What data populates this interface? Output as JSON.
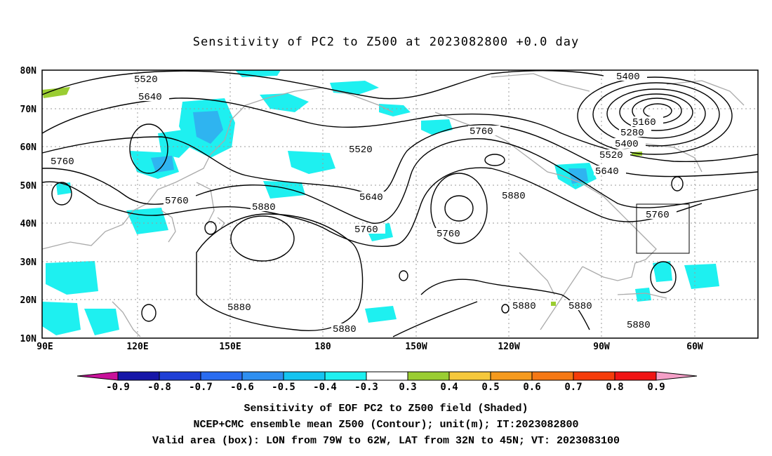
{
  "title": "Sensitivity of PC2 to Z500 at 2023082800 +0.0 day",
  "lat_labels": [
    "80N",
    "70N",
    "60N",
    "50N",
    "40N",
    "30N",
    "20N",
    "10N"
  ],
  "lon_labels": [
    "90E",
    "120E",
    "150E",
    "180",
    "150W",
    "120W",
    "90W",
    "60W"
  ],
  "contour_labels": [
    "5520",
    "5640",
    "5760",
    "5520",
    "5400",
    "5160",
    "5280",
    "5400",
    "5520",
    "5640",
    "5760",
    "5760",
    "5880",
    "5640",
    "5760",
    "5760",
    "5880",
    "5760",
    "5880",
    "5880",
    "5880",
    "5880",
    "5880"
  ],
  "colorbar": {
    "labels": [
      "-0.9",
      "-0.8",
      "-0.7",
      "-0.6",
      "-0.5",
      "-0.4",
      "-0.3",
      "0.3",
      "0.4",
      "0.5",
      "0.6",
      "0.7",
      "0.8",
      "0.9"
    ],
    "colors": [
      "#c8129a",
      "#1616a8",
      "#1f3fd6",
      "#2a6cf0",
      "#2f8ff0",
      "#15c4f0",
      "#1ef0f0",
      "#ffffff",
      "#9acd32",
      "#f5c83c",
      "#f59a1e",
      "#f57814",
      "#f53c0a",
      "#f01414",
      "#f5a0c8"
    ]
  },
  "valid_box": {
    "lon": [
      -79,
      -62
    ],
    "lat": [
      32,
      45
    ]
  },
  "captions": [
    "Sensitivity of EOF PC2 to Z500 field (Shaded)",
    "NCEP+CMC ensemble mean Z500 (Contour); unit(m); IT:2023082800",
    "Valid area (box): LON from 79W to 62W, LAT from 32N to 45N; VT: 2023083100"
  ]
}
